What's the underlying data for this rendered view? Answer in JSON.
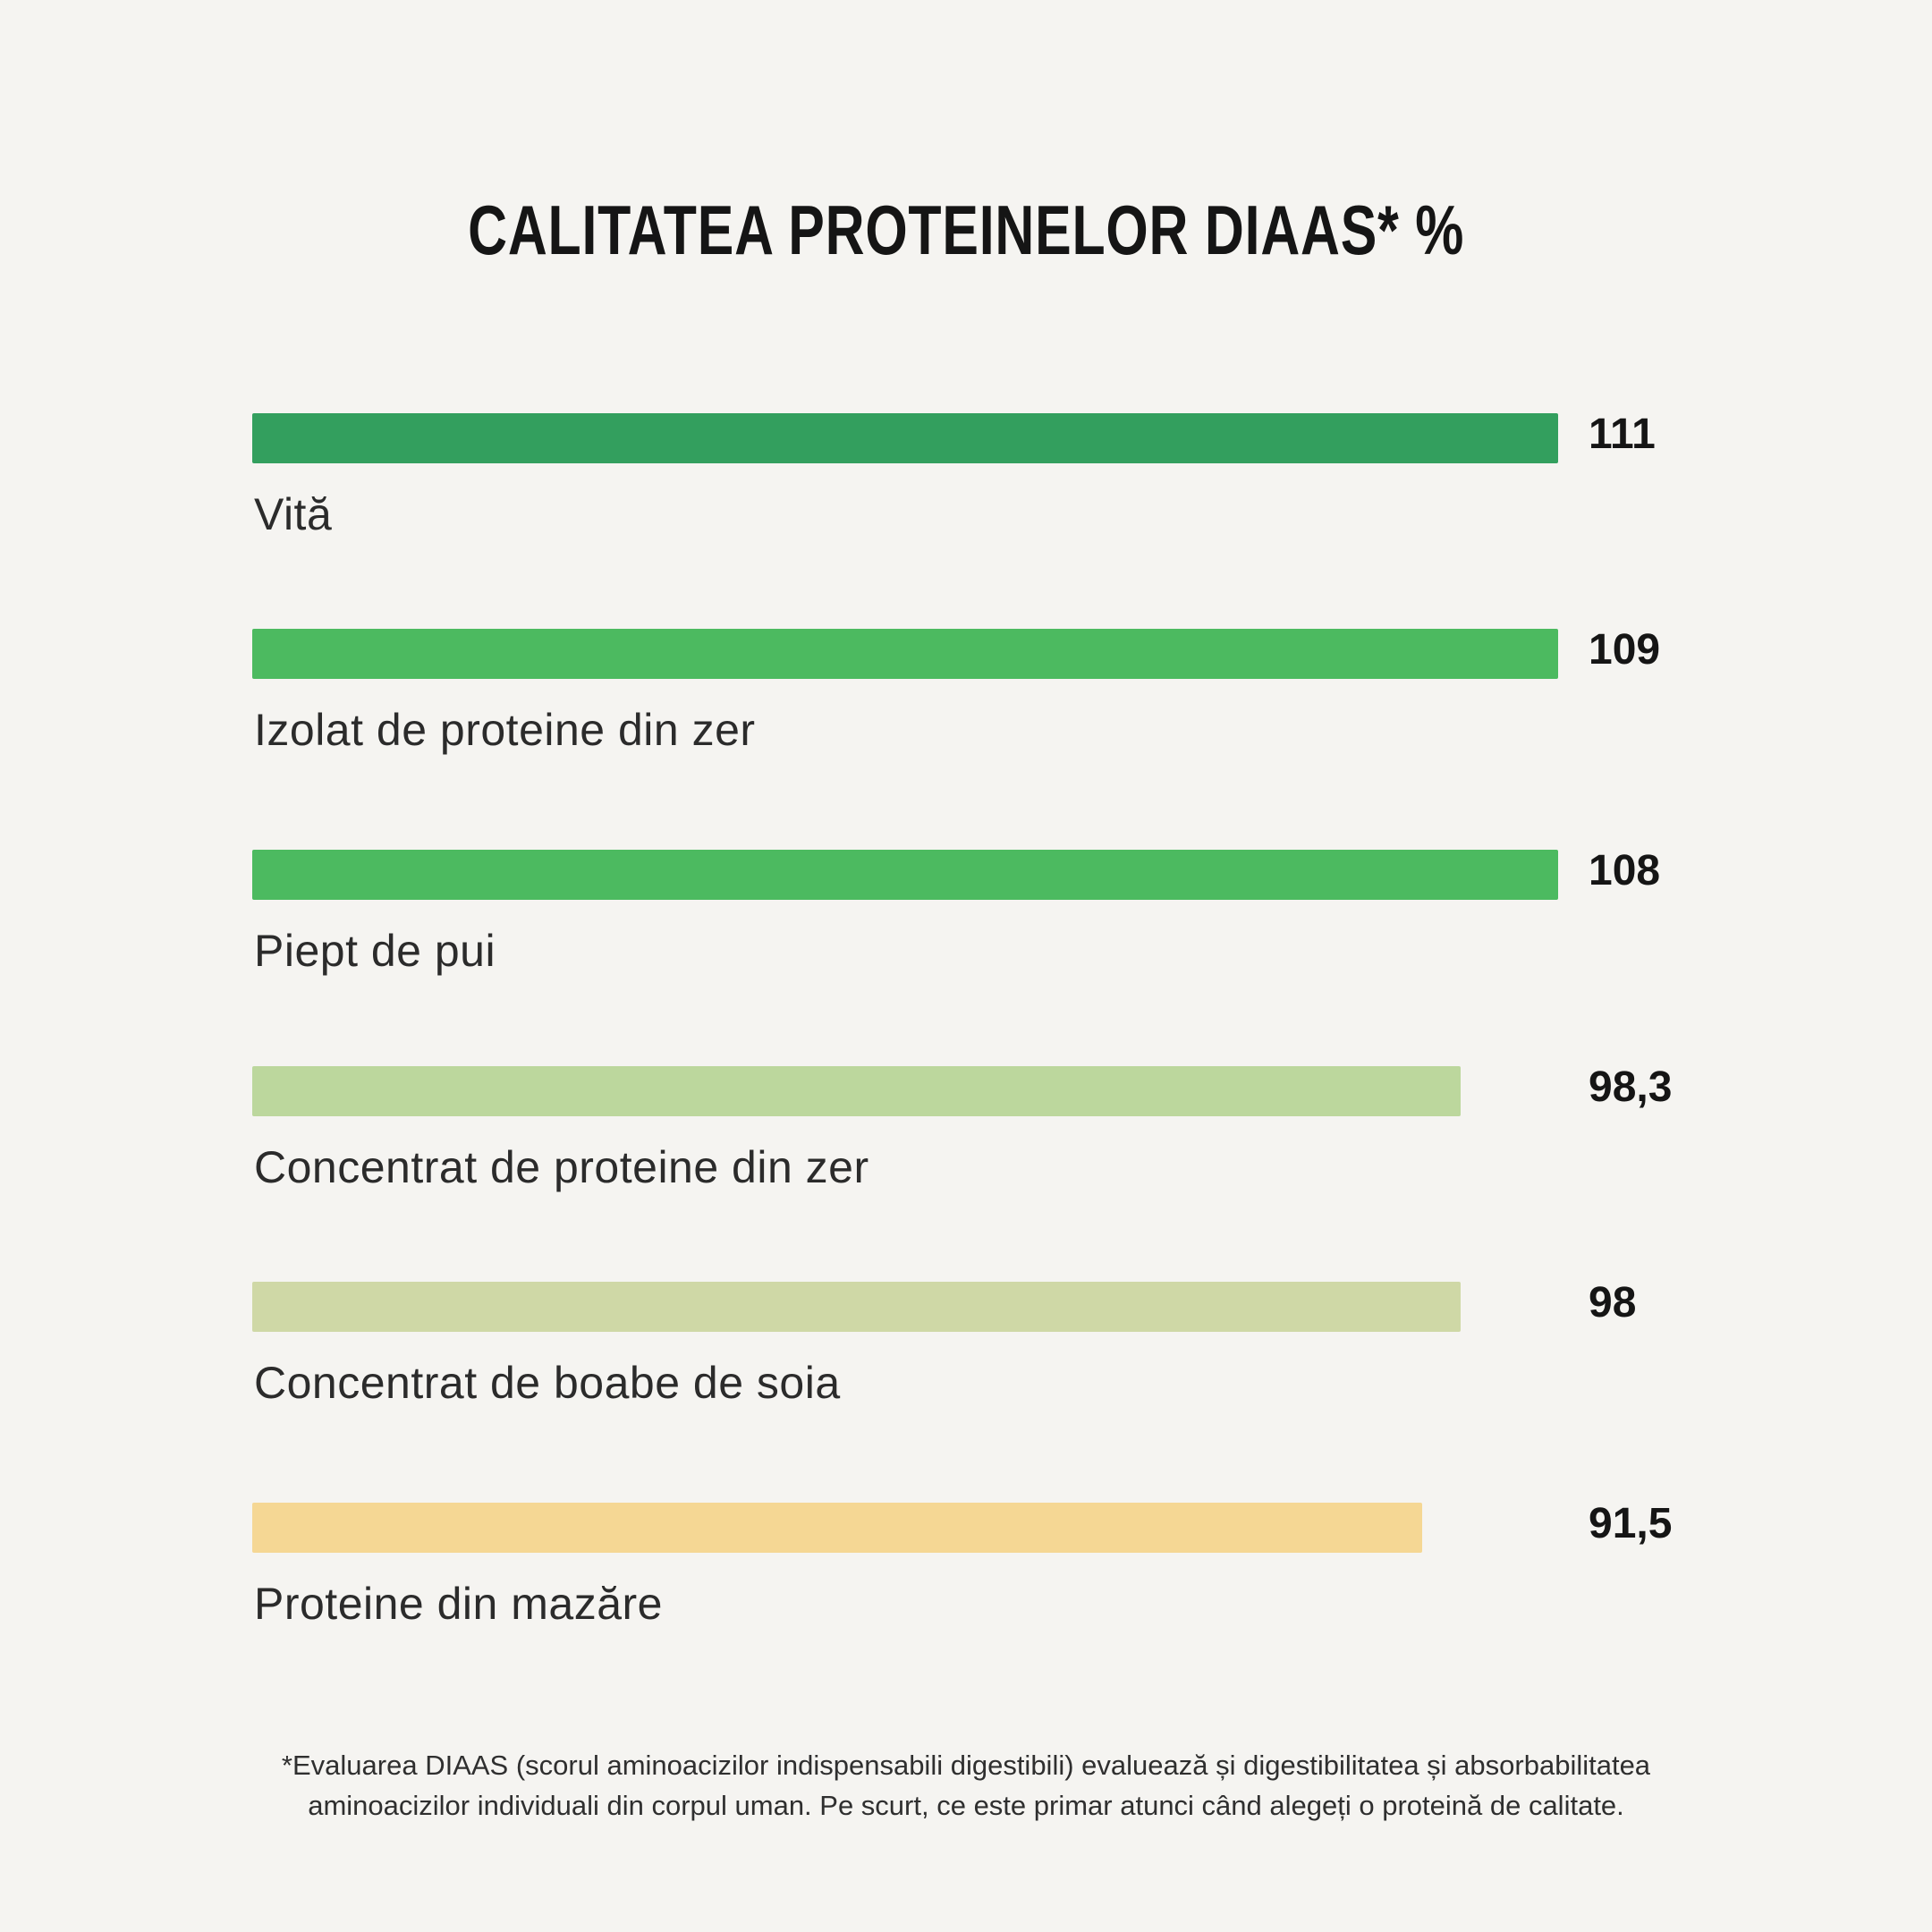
{
  "page": {
    "background_color": "#f5f4f1",
    "title": "CALITATEA PROTEINELOR DIAAS* %",
    "footnote": "*Evaluarea DIAAS (scorul aminoacizilor indispensabili digestibili) evaluează și digestibilitatea și absorbabilitatea aminoacizilor individuali din corpul uman. Pe scurt, ce este primar atunci când alegeți o proteină de calitate."
  },
  "chart_data": {
    "type": "bar",
    "orientation": "horizontal",
    "title": "CALITATEA PROTEINELOR DIAAS* %",
    "categories": [
      "Vită",
      "Izolat de proteine din zer",
      "Piept de pui",
      "Concentrat de proteine din zer",
      "Concentrat de boabe de soia",
      "Proteine din mazăre"
    ],
    "values": [
      111,
      109,
      108,
      98.3,
      98,
      91.5
    ],
    "value_labels": [
      "111",
      "109",
      "108",
      "98,3",
      "98",
      "91,5"
    ],
    "colors": [
      "#339f5e",
      "#4cba60",
      "#4cba60",
      "#bcd79d",
      "#cfd8a6",
      "#f5d794"
    ],
    "bar_width_pct": [
      100,
      100,
      100,
      92.5,
      92.5,
      89.6
    ],
    "xlabel": "",
    "ylabel": "",
    "legend": false,
    "grid": false,
    "value_label_position": "fixed-right-column",
    "footnote": "*Evaluarea DIAAS (scorul aminoacizilor indispensabili digestibili) evaluează și digestibilitatea și absorbabilitatea aminoacizilor individuali din corpul uman. Pe scurt, ce este primar atunci când alegeți o proteină de calitate."
  }
}
